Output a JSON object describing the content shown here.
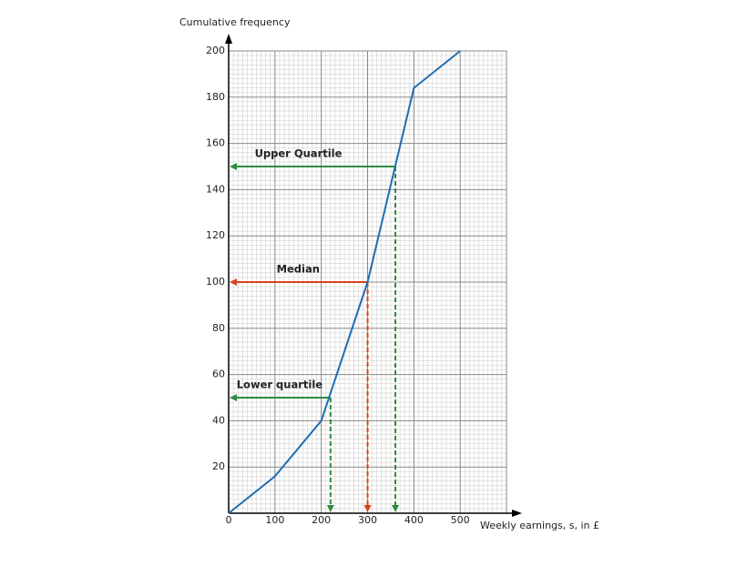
{
  "chart_data": {
    "type": "line",
    "y_label": "Cumulative frequency",
    "x_label": "Weekly earnings, s, in £",
    "x": [
      0,
      100,
      200,
      300,
      400,
      500
    ],
    "series": [
      {
        "name": "Cumulative frequency",
        "color": "#1f6db3",
        "values": [
          0,
          16,
          40,
          100,
          184,
          200
        ]
      }
    ],
    "xlim": [
      0,
      600
    ],
    "xticks": [
      0,
      100,
      200,
      300,
      400,
      500
    ],
    "ylim": [
      0,
      200
    ],
    "yticks": [
      20,
      40,
      60,
      80,
      100,
      120,
      140,
      160,
      180,
      200
    ],
    "grid": true,
    "annotations": [
      {
        "text": "Upper Quartile",
        "x": 360,
        "y": 150,
        "color": "#2e8b3e"
      },
      {
        "text": "Median",
        "x": 300,
        "y": 100,
        "color": "#d9441c"
      },
      {
        "text": "Lower quartile",
        "x": 220,
        "y": 50,
        "color": "#2e8b3e"
      }
    ]
  }
}
